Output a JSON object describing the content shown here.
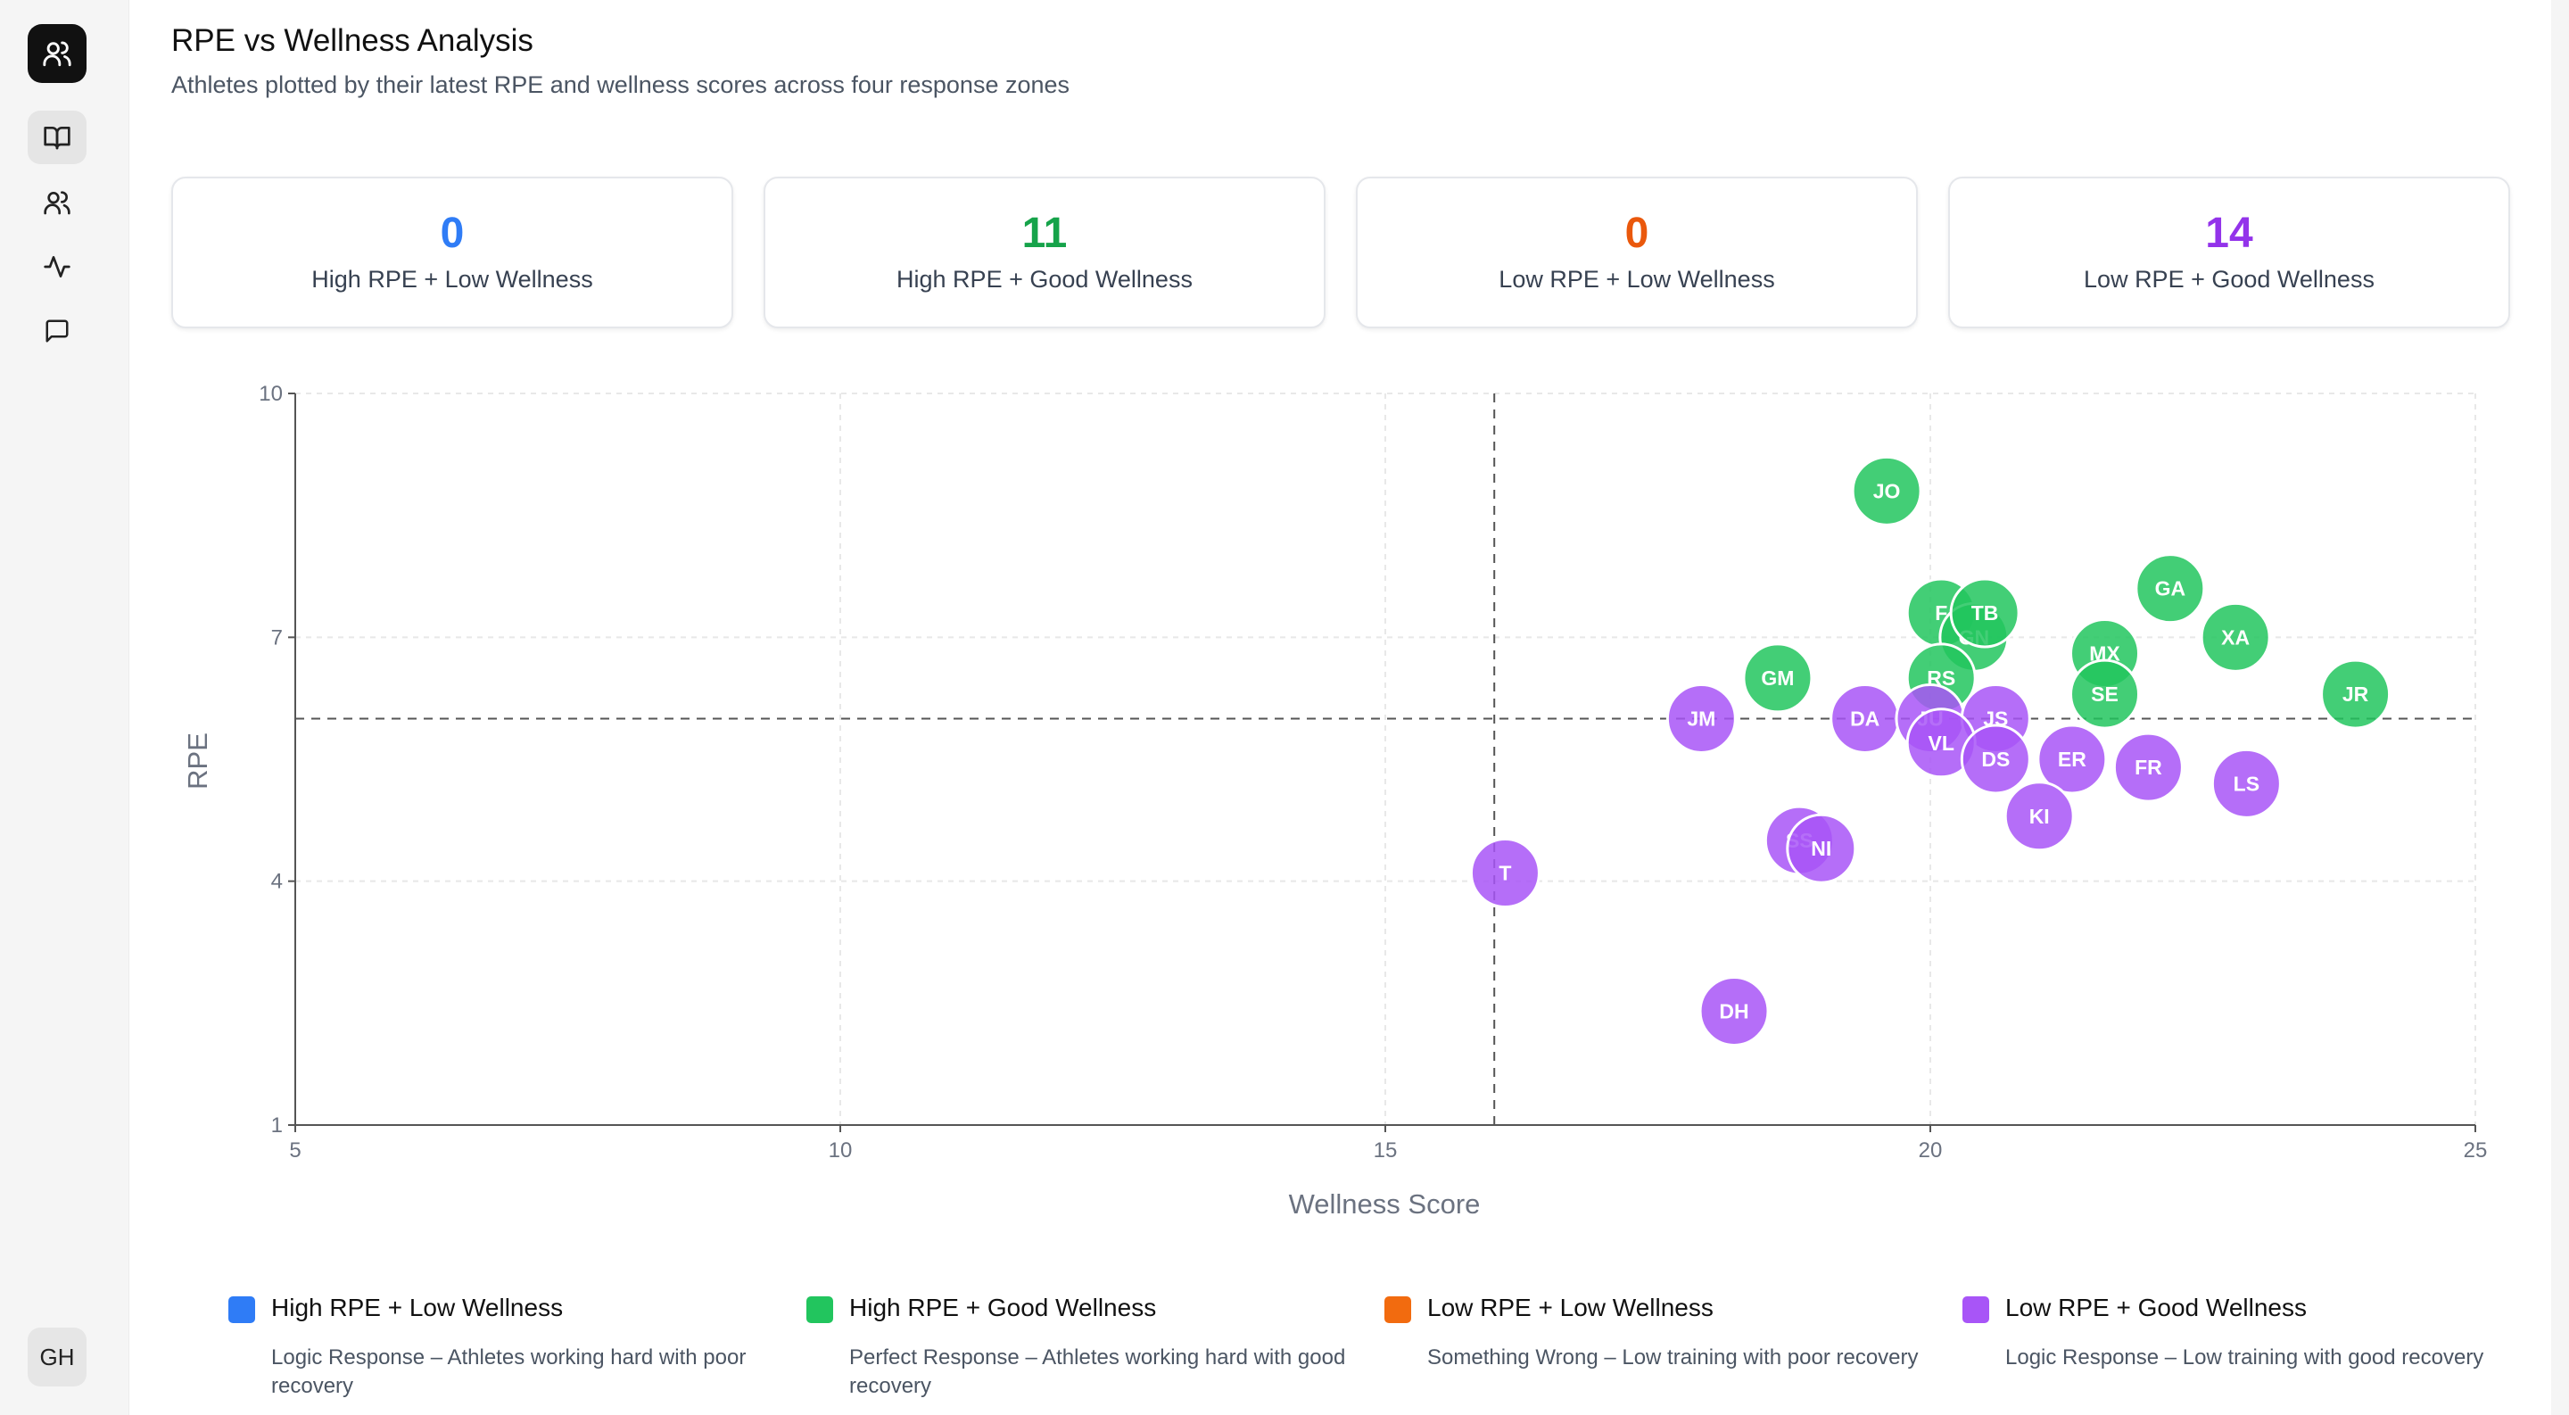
{
  "header": {
    "title": "RPE vs Wellness Analysis",
    "subtitle": "Athletes plotted by their latest RPE and wellness scores across four response zones"
  },
  "sidebar": {
    "logo_icon": "users-icon",
    "items": [
      {
        "icon": "book-icon",
        "active": true
      },
      {
        "icon": "users-icon",
        "active": false
      },
      {
        "icon": "activity-icon",
        "active": false
      },
      {
        "icon": "message-icon",
        "active": false
      }
    ],
    "avatar": "GH"
  },
  "colors": {
    "blue": "#2f7cf6",
    "green": "#22c55e",
    "orange": "#f26b0f",
    "purple": "#a855f7"
  },
  "stats": [
    {
      "value": "0",
      "label": "High RPE + Low Wellness",
      "color": "#2f7cf6"
    },
    {
      "value": "11",
      "label": "High RPE + Good Wellness",
      "color": "#16a34a"
    },
    {
      "value": "0",
      "label": "Low RPE + Low Wellness",
      "color": "#ea580c"
    },
    {
      "value": "14",
      "label": "Low RPE + Good Wellness",
      "color": "#9333ea"
    }
  ],
  "legend": [
    {
      "title": "High RPE + Low Wellness",
      "desc": "Logic Response – Athletes working hard with poor recovery",
      "color": "#2f7cf6"
    },
    {
      "title": "High RPE + Good Wellness",
      "desc": "Perfect Response – Athletes working hard with good recovery",
      "color": "#22c55e"
    },
    {
      "title": "Low RPE + Low Wellness",
      "desc": "Something Wrong – Low training with poor recovery",
      "color": "#f26b0f"
    },
    {
      "title": "Low RPE + Good Wellness",
      "desc": "Logic Response – Low training with good recovery",
      "color": "#a855f7"
    }
  ],
  "chart_data": {
    "type": "scatter",
    "xlabel": "Wellness Score",
    "ylabel": "RPE",
    "xlim": [
      5,
      25
    ],
    "ylim": [
      1,
      10
    ],
    "xticks": [
      5,
      10,
      15,
      20,
      25
    ],
    "yticks": [
      1,
      4,
      7,
      10
    ],
    "thresholds": {
      "x": 16,
      "y": 6
    },
    "grid": true,
    "series": [
      {
        "color": "#22c55e",
        "points": [
          {
            "label": "JO",
            "x": 19.6,
            "y": 8.8
          },
          {
            "label": "F",
            "x": 20.1,
            "y": 7.3
          },
          {
            "label": "GN",
            "x": 20.4,
            "y": 7.0
          },
          {
            "label": "TB",
            "x": 20.5,
            "y": 7.3
          },
          {
            "label": "GA",
            "x": 22.2,
            "y": 7.6
          },
          {
            "label": "XA",
            "x": 22.8,
            "y": 7.0
          },
          {
            "label": "MX",
            "x": 21.6,
            "y": 6.8
          },
          {
            "label": "GM",
            "x": 18.6,
            "y": 6.5
          },
          {
            "label": "RS",
            "x": 20.1,
            "y": 6.5
          },
          {
            "label": "SE",
            "x": 21.6,
            "y": 6.3
          },
          {
            "label": "JR",
            "x": 23.9,
            "y": 6.3
          }
        ]
      },
      {
        "color": "#a855f7",
        "points": [
          {
            "label": "JM",
            "x": 17.9,
            "y": 6.0
          },
          {
            "label": "DA",
            "x": 19.4,
            "y": 6.0
          },
          {
            "label": "JU",
            "x": 20.0,
            "y": 6.0
          },
          {
            "label": "JS",
            "x": 20.6,
            "y": 6.0
          },
          {
            "label": "VL",
            "x": 20.1,
            "y": 5.7
          },
          {
            "label": "DS",
            "x": 20.6,
            "y": 5.5
          },
          {
            "label": "ER",
            "x": 21.3,
            "y": 5.5
          },
          {
            "label": "FR",
            "x": 22.0,
            "y": 5.4
          },
          {
            "label": "LS",
            "x": 22.9,
            "y": 5.2
          },
          {
            "label": "KI",
            "x": 21.0,
            "y": 4.8
          },
          {
            "label": "SS",
            "x": 18.8,
            "y": 4.5
          },
          {
            "label": "NI",
            "x": 19.0,
            "y": 4.4
          },
          {
            "label": "T",
            "x": 16.1,
            "y": 4.1
          },
          {
            "label": "DH",
            "x": 18.2,
            "y": 2.4
          }
        ]
      }
    ]
  }
}
